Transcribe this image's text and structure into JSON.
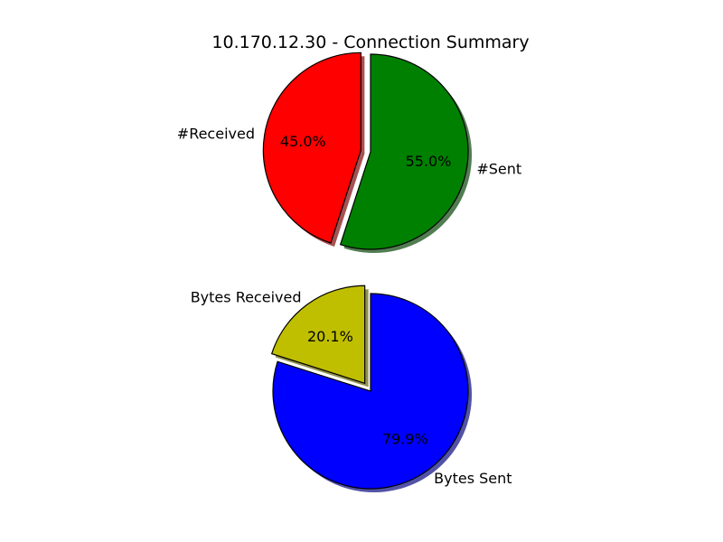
{
  "title": "10.170.12.30 - Connection Summary",
  "chart_data": [
    {
      "type": "pie",
      "slices": [
        {
          "label": "#Sent",
          "value": 55.0,
          "pct_label": "55.0%",
          "color": "#008000",
          "exploded": false
        },
        {
          "label": "#Received",
          "value": 45.0,
          "pct_label": "45.0%",
          "color": "#ff0000",
          "exploded": true
        }
      ],
      "start_angle_deg": 90,
      "direction": "clockwise",
      "shadow": true
    },
    {
      "type": "pie",
      "slices": [
        {
          "label": "Bytes Sent",
          "value": 79.9,
          "pct_label": "79.9%",
          "color": "#0000ff",
          "exploded": false
        },
        {
          "label": "Bytes Received",
          "value": 20.1,
          "pct_label": "20.1%",
          "color": "#bfbf00",
          "exploded": true
        }
      ],
      "start_angle_deg": 90,
      "direction": "clockwise",
      "shadow": true
    }
  ]
}
